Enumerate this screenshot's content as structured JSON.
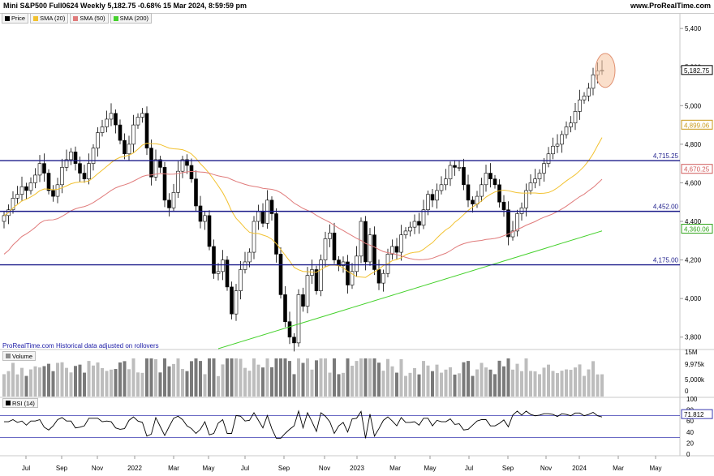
{
  "header": {
    "title": "Mini S&P500 Full0624 Weekly 5,182.75 -0.68% 15 Mar 2024, 8:59:59 pm",
    "brand": "www.ProRealTime.com"
  },
  "legend": [
    {
      "label": "Price",
      "color": "#000000"
    },
    {
      "label": "SMA (20)",
      "color": "#f2c12e"
    },
    {
      "label": "SMA (50)",
      "color": "#e07b7b"
    },
    {
      "label": "SMA (200)",
      "color": "#45d12c"
    }
  ],
  "source_note": "ProRealTime.com Historical data adjusted on rollovers",
  "volume_label": "Volume",
  "rsi_label": "RSI (14)",
  "colors": {
    "price": "#000000",
    "sma20": "#f2c12e",
    "sma50": "#e07b7b",
    "sma200": "#45d12c",
    "hlines": "#1c1c8a",
    "volume": "#8c8c8c",
    "rsi": "#000000",
    "highlight": "#f7c9a8"
  },
  "chart_data": [
    {
      "type": "candlestick",
      "title": "Mini S&P500 Full0624 Weekly",
      "x_labels": [
        "Jul",
        "Sep",
        "Nov",
        "2022",
        "Mar",
        "May",
        "Jul",
        "Sep",
        "Nov",
        "2023",
        "Mar",
        "May",
        "Jul",
        "Sep",
        "Nov",
        "2024",
        "Mar",
        "May"
      ],
      "y_ticks": [
        3800,
        4000,
        4200,
        4400,
        4600,
        4800,
        5000,
        5200,
        5400
      ],
      "ylim": [
        3740,
        5430
      ],
      "last_price": 5182.75,
      "last_price_label": "5,182.75",
      "horizontal_lines": [
        {
          "value": 4715.25,
          "label": "4,715.25"
        },
        {
          "value": 4452.0,
          "label": "4,452.00"
        },
        {
          "value": 4175.0,
          "label": "4,175.00"
        }
      ],
      "indicator_labels": [
        {
          "name": "SMA (20)",
          "value": 4899.06,
          "label": "4,899.06"
        },
        {
          "name": "SMA (50)",
          "value": 4670.25,
          "label": "4,670.25"
        },
        {
          "name": "SMA (200)",
          "value": 4360.06,
          "label": "4,360.06"
        }
      ],
      "closes": [
        4430,
        4460,
        4520,
        4540,
        4580,
        4560,
        4600,
        4640,
        4700,
        4650,
        4560,
        4530,
        4590,
        4680,
        4720,
        4760,
        4700,
        4650,
        4620,
        4700,
        4780,
        4860,
        4890,
        4930,
        4960,
        4900,
        4820,
        4750,
        4800,
        4900,
        4940,
        4960,
        4780,
        4630,
        4720,
        4680,
        4510,
        4470,
        4550,
        4660,
        4720,
        4690,
        4620,
        4480,
        4400,
        4430,
        4270,
        4130,
        4140,
        4200,
        4060,
        3920,
        4040,
        4150,
        4190,
        4240,
        4400,
        4450,
        4390,
        4510,
        4440,
        4230,
        4020,
        3880,
        3800,
        3770,
        4020,
        3960,
        4120,
        4150,
        4040,
        4200,
        4310,
        4340,
        4200,
        4170,
        4190,
        4070,
        4140,
        4220,
        4400,
        4190,
        4330,
        4150,
        4080,
        4130,
        4230,
        4270,
        4240,
        4330,
        4350,
        4370,
        4400,
        4380,
        4460,
        4540,
        4510,
        4560,
        4590,
        4620,
        4690,
        4680,
        4680,
        4590,
        4510,
        4490,
        4530,
        4590,
        4650,
        4620,
        4590,
        4500,
        4460,
        4320,
        4350,
        4440,
        4470,
        4560,
        4600,
        4620,
        4650,
        4700,
        4750,
        4790,
        4800,
        4850,
        4890,
        4910,
        4970,
        5030,
        5050,
        5090,
        5160,
        5180,
        5183
      ],
      "volume_y_ticks": [
        "15M",
        "9,975k",
        "5,000k",
        "0"
      ],
      "volume_last": "9,975k",
      "rsi_y_ticks": [
        100,
        80,
        60,
        40,
        20,
        0
      ],
      "rsi_levels": [
        70,
        30
      ],
      "rsi_last": 71.812,
      "rsi_last_label": "71.812"
    }
  ]
}
